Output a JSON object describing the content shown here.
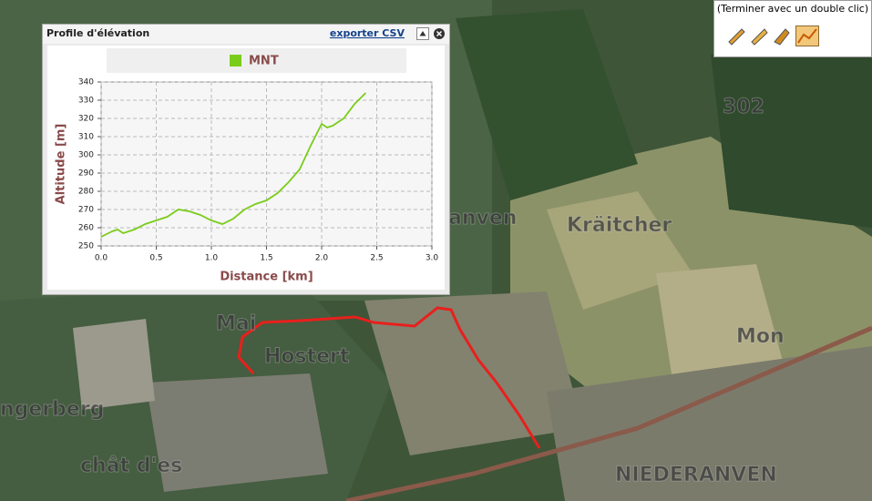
{
  "toolbar": {
    "hint": "(Terminer avec un double clic)"
  },
  "panel": {
    "title": "Profile d'élévation",
    "export_link": "exporter CSV"
  },
  "map_labels": [
    "Hostert",
    "NIEDERANVEN",
    "ngerberg",
    "anven",
    "Mon",
    "302",
    "Kräitcher",
    "Mai",
    "chât d'es"
  ],
  "chart_data": {
    "type": "line",
    "x_label": "Distance [km]",
    "y_label": "Altitude [m]",
    "x": [
      0,
      0.1,
      0.15,
      0.2,
      0.3,
      0.4,
      0.5,
      0.6,
      0.7,
      0.8,
      0.9,
      1.0,
      1.1,
      1.2,
      1.3,
      1.4,
      1.5,
      1.6,
      1.7,
      1.8,
      1.9,
      2.0,
      2.05,
      2.1,
      2.2,
      2.3,
      2.4
    ],
    "series": [
      {
        "name": "MNT",
        "color": "#7acc1a",
        "values": [
          255,
          258,
          259,
          257,
          259,
          262,
          264,
          266,
          270,
          269,
          267,
          264,
          262,
          265,
          270,
          273,
          275,
          279,
          285,
          292,
          305,
          317,
          315,
          316,
          320,
          328,
          334
        ]
      }
    ],
    "xlim": [
      0,
      3
    ],
    "ylim": [
      250,
      340
    ],
    "xticks": [
      {
        "value": 0,
        "label": "0.0"
      },
      0.5,
      {
        "value": 1,
        "label": "1.0"
      },
      1.5,
      {
        "value": 2,
        "label": "2.0"
      },
      2.5,
      {
        "value": 3,
        "label": "3.0"
      }
    ],
    "yticks": [
      250,
      260,
      270,
      280,
      290,
      300,
      310,
      320,
      330,
      340
    ],
    "grid": true,
    "legend": "top"
  }
}
